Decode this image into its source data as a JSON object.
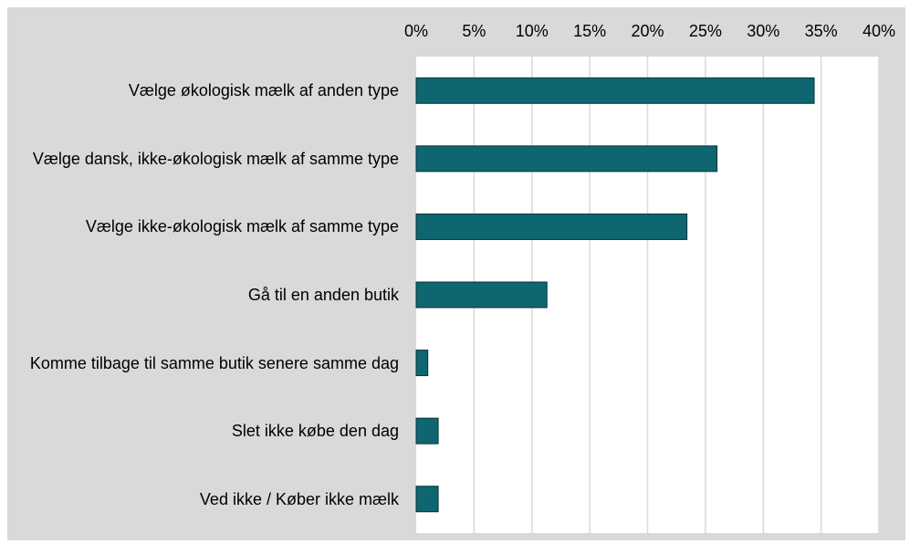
{
  "chart_data": {
    "type": "bar",
    "orientation": "horizontal",
    "categories": [
      "Vælge økologisk mælk af anden type",
      "Vælge dansk, ikke-økologisk mælk af samme type",
      "Vælge ikke-økologisk mælk af samme type",
      "Gå til en anden butik",
      "Komme tilbage til samme butik senere samme dag",
      "Slet ikke købe den dag",
      "Ved ikke / Køber ikke mælk"
    ],
    "values": [
      34.4,
      26.0,
      23.4,
      11.3,
      1.0,
      1.9,
      1.9
    ],
    "color": "#0e6670",
    "xlim": [
      0,
      40
    ],
    "xticks": [
      {
        "value": 0,
        "label": "0%"
      },
      {
        "value": 5,
        "label": "5%"
      },
      {
        "value": 10,
        "label": "10%"
      },
      {
        "value": 15,
        "label": "15%"
      },
      {
        "value": 20,
        "label": "20%"
      },
      {
        "value": 25,
        "label": "25%"
      },
      {
        "value": 30,
        "label": "30%"
      },
      {
        "value": 35,
        "label": "35%"
      },
      {
        "value": 40,
        "label": "40%"
      }
    ],
    "grid": true
  }
}
